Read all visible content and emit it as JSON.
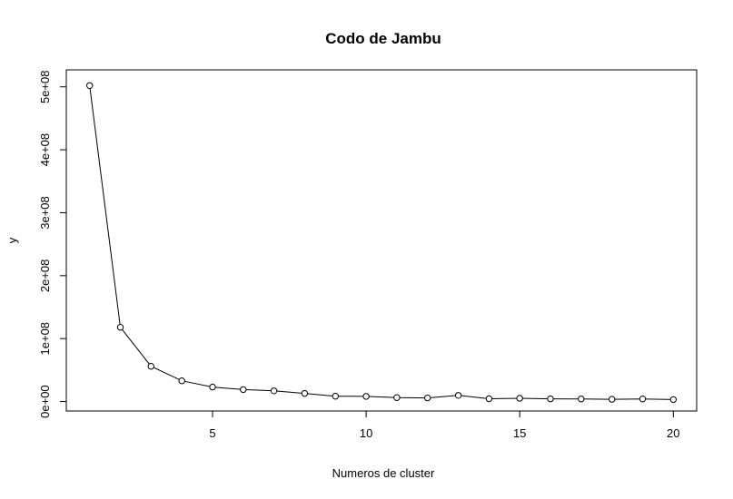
{
  "chart_data": {
    "type": "line",
    "title": "Codo de Jambu",
    "xlabel": "Numeros de cluster",
    "ylabel": "y",
    "x": [
      1,
      2,
      3,
      4,
      5,
      6,
      7,
      8,
      9,
      10,
      11,
      12,
      13,
      14,
      15,
      16,
      17,
      18,
      19,
      20
    ],
    "series": [
      {
        "values": [
          502000000,
          118000000,
          56000000,
          33000000,
          23000000,
          19000000,
          17000000,
          13000000,
          8500000,
          8200000,
          6300000,
          5800000,
          9800000,
          4400000,
          5200000,
          4300000,
          4200000,
          3600000,
          4200000,
          3100000
        ]
      }
    ],
    "xlim": [
      0.24,
      20.76
    ],
    "ylim": [
      -15000000,
      527000000
    ],
    "xticks": [
      5,
      10,
      15,
      20
    ],
    "xtick_labels": [
      "5",
      "10",
      "15",
      "20"
    ],
    "yticks": [
      0,
      100000000,
      200000000,
      300000000,
      400000000,
      500000000
    ],
    "ytick_labels": [
      "0e+00",
      "1e+08",
      "2e+08",
      "3e+08",
      "4e+08",
      "5e+08"
    ],
    "grid": false,
    "marker": "open-circle",
    "line_color": "#000000"
  }
}
